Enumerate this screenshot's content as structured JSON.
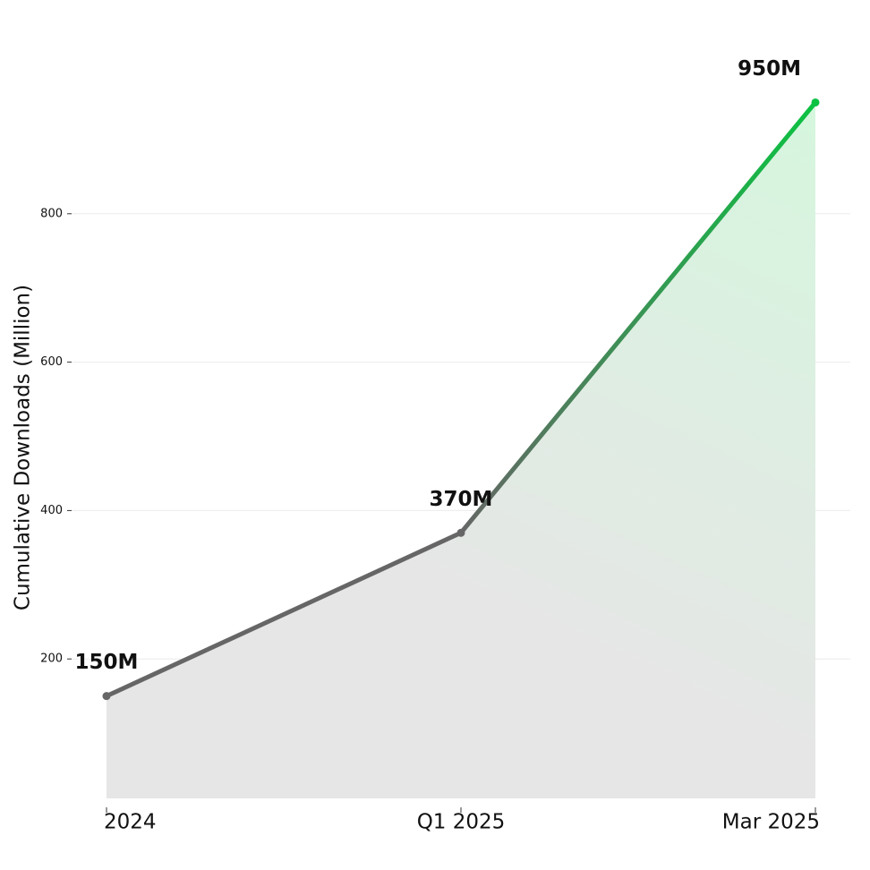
{
  "chart_data": {
    "type": "area-line",
    "y_label": "Cumulative Downloads (Million)",
    "categories": [
      "2024",
      "Q1 2025",
      "Mar 2025"
    ],
    "values": [
      150,
      370,
      950
    ],
    "value_labels": [
      "150M",
      "370M",
      "950M"
    ],
    "color_start": "#666666",
    "color_end": "#0cc242",
    "ylim": [
      0,
      1000
    ],
    "yticks": [
      200,
      400,
      600,
      800
    ],
    "grid": true
  }
}
